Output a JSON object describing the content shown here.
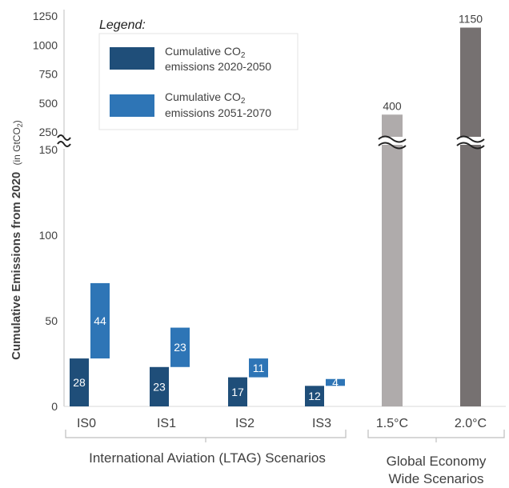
{
  "chart_data": {
    "type": "bar",
    "ylabel": "Cumulative Emissions from 2020",
    "ylabel_unit_prefix": "(in GtCO",
    "ylabel_unit_sub": "2",
    "ylabel_unit_suffix": ")",
    "lower_axis_ticks": [
      0,
      50,
      100,
      150
    ],
    "upper_axis_ticks": [
      250,
      500,
      750,
      1000,
      1250
    ],
    "axis_break": true,
    "legend": {
      "title": "Legend:",
      "placement": "top-left",
      "entries": [
        {
          "line1_prefix": "Cumulative CO",
          "line1_sub": "2",
          "line2": "emissions 2020-2050",
          "color": "#1f4e79"
        },
        {
          "line1_prefix": "Cumulative CO",
          "line1_sub": "2",
          "line2": "emissions 2051-2070",
          "color": "#2e75b6"
        }
      ]
    },
    "categories": [
      "IS0",
      "IS1",
      "IS2",
      "IS3",
      "1.5°C",
      "2.0°C"
    ],
    "groups": [
      {
        "label": "International Aviation (LTAG) Scenarios",
        "categories": [
          "IS0",
          "IS1",
          "IS2",
          "IS3"
        ]
      },
      {
        "label_line1": "Global Economy",
        "label_line2": "Wide Scenarios",
        "categories": [
          "1.5°C",
          "2.0°C"
        ]
      }
    ],
    "series": [
      {
        "name": "Cumulative CO2 emissions 2020-2050",
        "color": "#1f4e79",
        "values": [
          28,
          23,
          17,
          12,
          null,
          null
        ]
      },
      {
        "name": "Cumulative CO2 emissions 2051-2070",
        "color": "#2e75b6",
        "values": [
          44,
          23,
          11,
          4,
          null,
          null
        ]
      }
    ],
    "global_scenarios": [
      {
        "category": "1.5°C",
        "value": 400,
        "color": "#afabab"
      },
      {
        "category": "2.0°C",
        "value": 1150,
        "color": "#767171"
      }
    ]
  }
}
